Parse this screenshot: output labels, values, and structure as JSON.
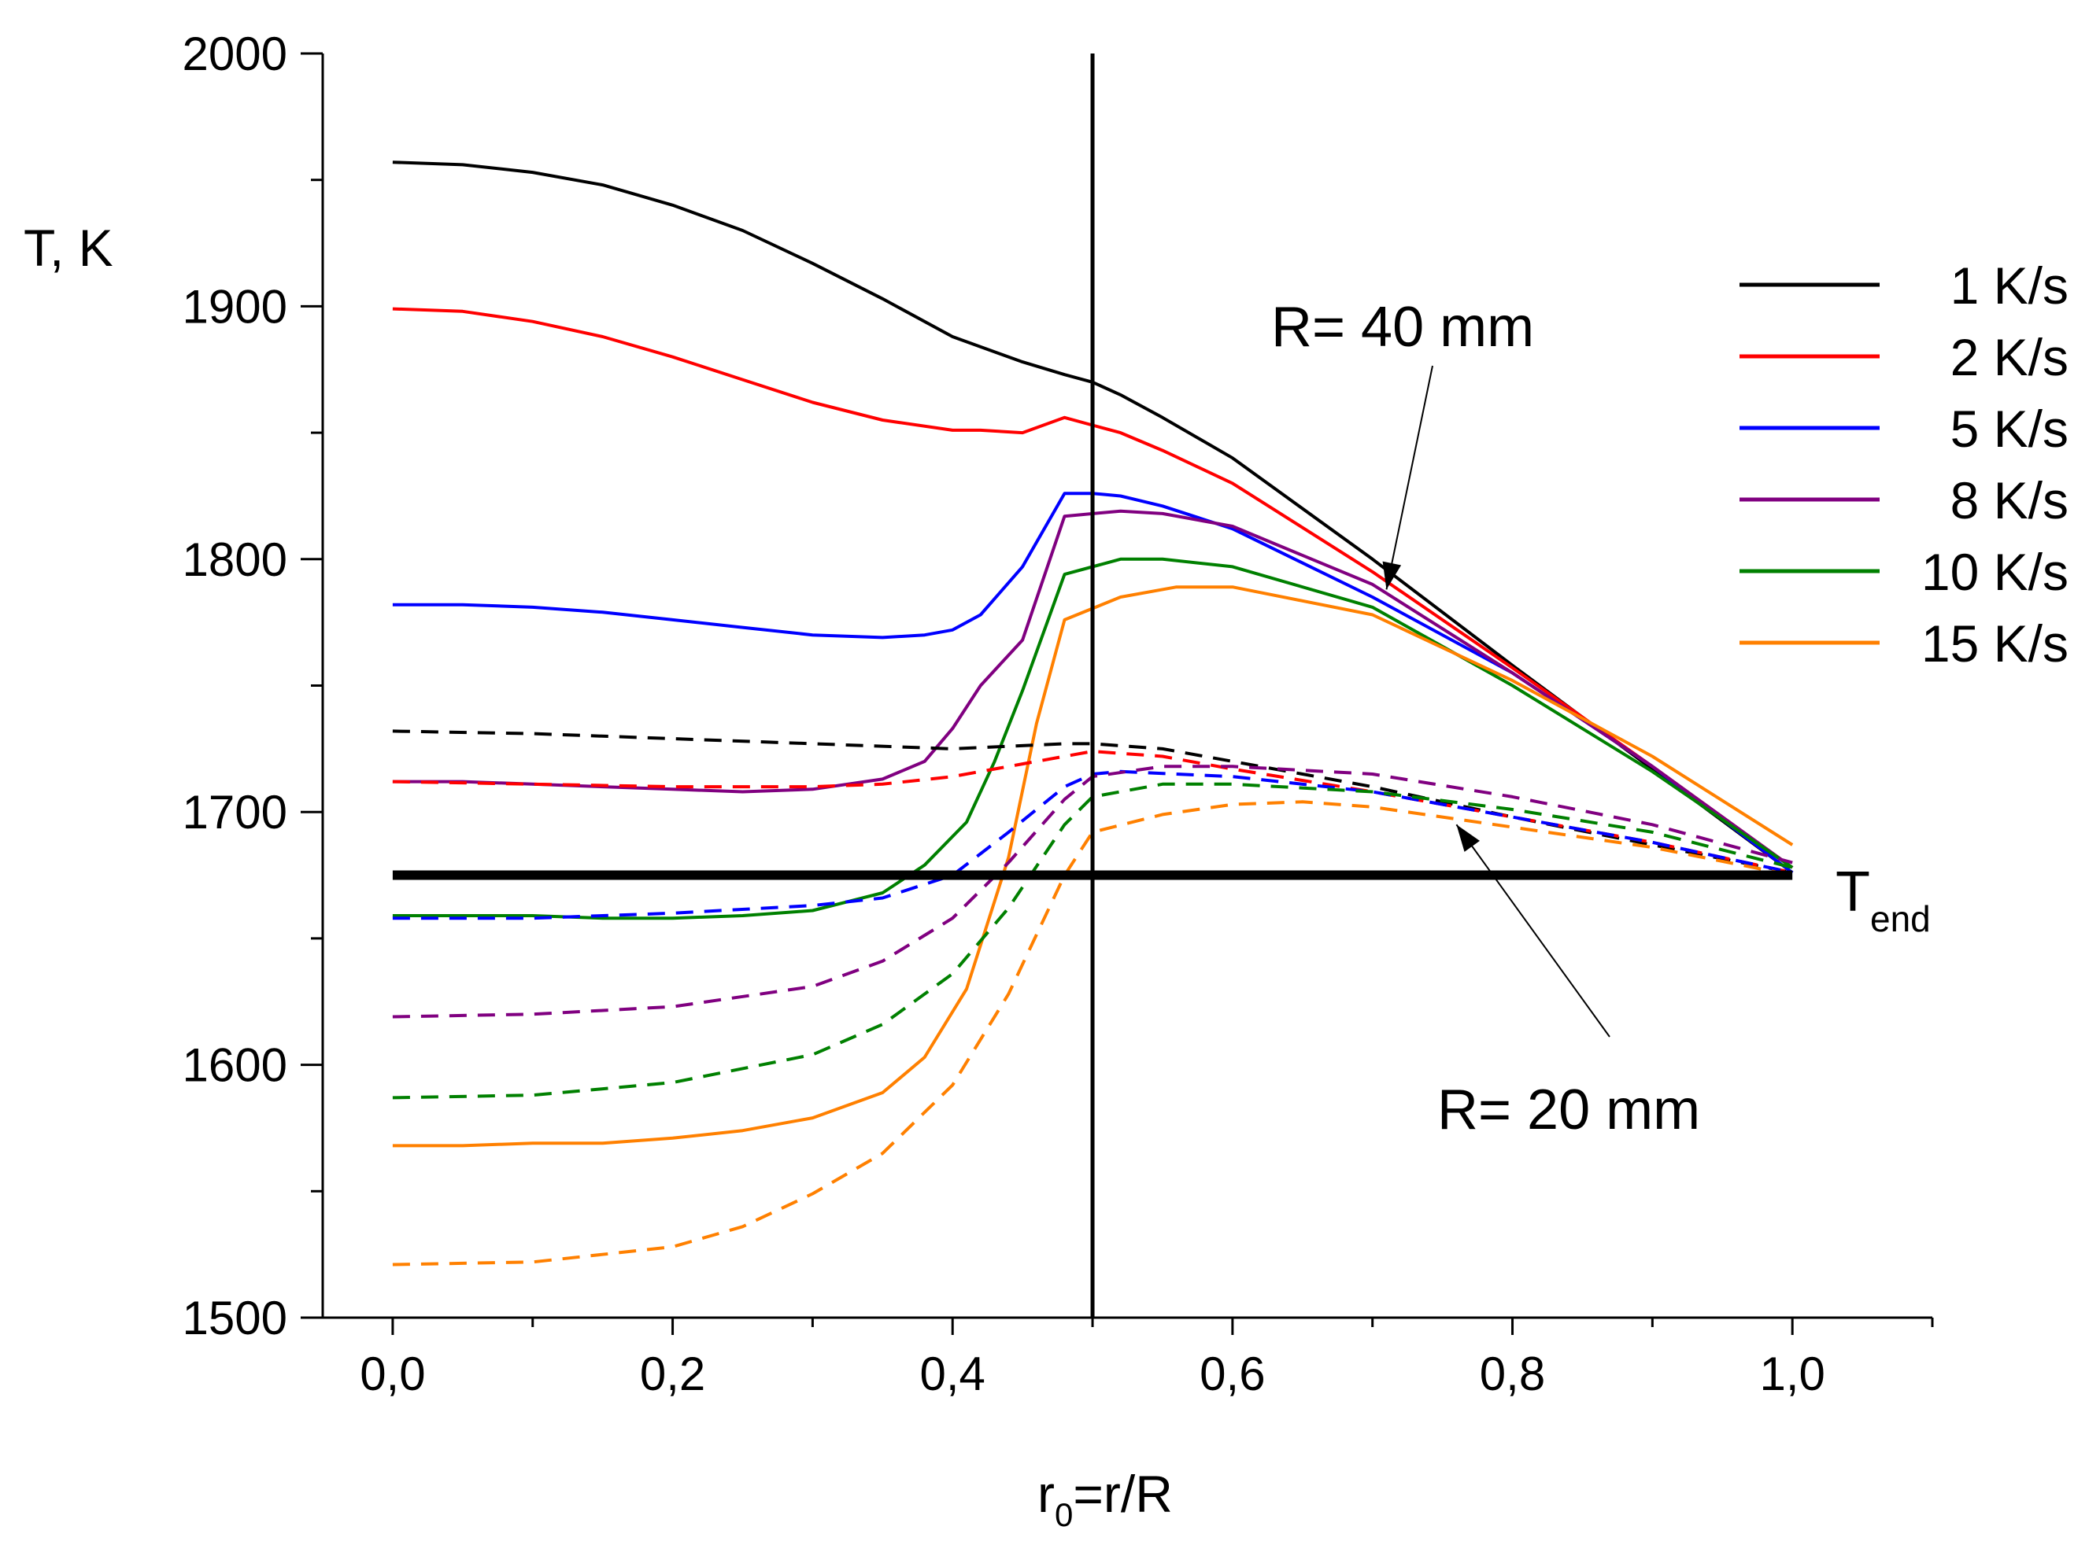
{
  "chart_data": {
    "type": "line",
    "ylabel": "T, K",
    "xlabel_main": "r",
    "xlabel_sub": "0",
    "xlabel_rest": "=r/R",
    "xlim": [
      -0.05,
      1.1
    ],
    "ylim": [
      1500,
      2000
    ],
    "x_ticks": [
      0.0,
      0.2,
      0.4,
      0.6,
      0.8,
      1.0
    ],
    "x_tick_labels": [
      "0,0",
      "0,2",
      "0,4",
      "0,6",
      "0,8",
      "1,0"
    ],
    "y_ticks": [
      1500,
      1600,
      1700,
      1800,
      1900,
      2000
    ],
    "y_tick_labels": [
      "1500",
      "1600",
      "1700",
      "1800",
      "1900",
      "2000"
    ],
    "vertical_line_x": 0.5,
    "t_end": {
      "value": 1675,
      "label_main": "T",
      "label_sub": "end"
    },
    "annotations": [
      {
        "text": "R= 40 mm",
        "arrow_to": [
          0.71,
          1788
        ]
      },
      {
        "text": "R= 20 mm",
        "arrow_to": [
          0.76,
          1695
        ]
      }
    ],
    "legend_position": "top-right",
    "series": [
      {
        "name": "1 K/s",
        "color": "#000000",
        "style": "solid",
        "group": "R=40",
        "x": [
          0,
          0.05,
          0.1,
          0.15,
          0.2,
          0.25,
          0.3,
          0.35,
          0.4,
          0.45,
          0.48,
          0.5,
          0.52,
          0.55,
          0.6,
          0.7,
          0.8,
          0.9,
          1.0
        ],
        "y": [
          1957,
          1956,
          1953,
          1948,
          1940,
          1930,
          1917,
          1903,
          1888,
          1878,
          1873,
          1870,
          1865,
          1856,
          1840,
          1800,
          1758,
          1717,
          1676
        ]
      },
      {
        "name": "2 K/s",
        "color": "#ff0000",
        "style": "solid",
        "group": "R=40",
        "x": [
          0,
          0.05,
          0.1,
          0.15,
          0.2,
          0.25,
          0.3,
          0.35,
          0.4,
          0.42,
          0.45,
          0.48,
          0.5,
          0.52,
          0.55,
          0.6,
          0.7,
          0.8,
          0.9,
          1.0
        ],
        "y": [
          1899,
          1898,
          1894,
          1888,
          1880,
          1871,
          1862,
          1855,
          1851,
          1851,
          1850,
          1856,
          1853,
          1850,
          1843,
          1830,
          1795,
          1757,
          1718,
          1678
        ]
      },
      {
        "name": "5 K/s",
        "color": "#0000ff",
        "style": "solid",
        "group": "R=40",
        "x": [
          0,
          0.05,
          0.1,
          0.15,
          0.2,
          0.25,
          0.3,
          0.35,
          0.38,
          0.4,
          0.42,
          0.45,
          0.48,
          0.5,
          0.52,
          0.55,
          0.6,
          0.7,
          0.8,
          0.9,
          1.0
        ],
        "y": [
          1782,
          1782,
          1781,
          1779,
          1776,
          1773,
          1770,
          1769,
          1770,
          1772,
          1778,
          1797,
          1826,
          1826,
          1825,
          1821,
          1812,
          1785,
          1755,
          1718,
          1676
        ]
      },
      {
        "name": "8 K/s",
        "color": "#800080",
        "style": "solid",
        "group": "R=40",
        "x": [
          0,
          0.05,
          0.1,
          0.15,
          0.2,
          0.25,
          0.3,
          0.35,
          0.38,
          0.4,
          0.42,
          0.45,
          0.48,
          0.52,
          0.55,
          0.6,
          0.7,
          0.8,
          0.9,
          1.0
        ],
        "y": [
          1712,
          1712,
          1711,
          1710,
          1709,
          1708,
          1709,
          1713,
          1720,
          1733,
          1750,
          1768,
          1817,
          1819,
          1818,
          1813,
          1790,
          1755,
          1718,
          1678
        ]
      },
      {
        "name": "10 K/s",
        "color": "#008000",
        "style": "solid",
        "group": "R=40",
        "x": [
          0,
          0.05,
          0.1,
          0.15,
          0.2,
          0.25,
          0.3,
          0.35,
          0.38,
          0.41,
          0.43,
          0.45,
          0.48,
          0.52,
          0.55,
          0.6,
          0.7,
          0.8,
          0.9,
          1.0
        ],
        "y": [
          1659,
          1659,
          1659,
          1658,
          1658,
          1659,
          1661,
          1668,
          1679,
          1696,
          1720,
          1748,
          1794,
          1800,
          1800,
          1797,
          1781,
          1750,
          1716,
          1678
        ]
      },
      {
        "name": "15 K/s",
        "color": "#ff8000",
        "style": "solid",
        "group": "R=40",
        "x": [
          0,
          0.05,
          0.1,
          0.15,
          0.2,
          0.25,
          0.3,
          0.35,
          0.38,
          0.41,
          0.44,
          0.46,
          0.48,
          0.52,
          0.56,
          0.6,
          0.7,
          0.8,
          0.9,
          1.0
        ],
        "y": [
          1568,
          1568,
          1569,
          1569,
          1571,
          1574,
          1579,
          1589,
          1603,
          1630,
          1682,
          1735,
          1776,
          1785,
          1789,
          1789,
          1778,
          1752,
          1722,
          1687
        ]
      },
      {
        "name": "1 K/s",
        "color": "#000000",
        "style": "dashed",
        "group": "R=20",
        "x": [
          0,
          0.1,
          0.2,
          0.3,
          0.4,
          0.48,
          0.5,
          0.55,
          0.6,
          0.7,
          0.8,
          0.9,
          1.0
        ],
        "y": [
          1732,
          1731,
          1729,
          1727,
          1725,
          1727,
          1727,
          1725,
          1720,
          1710,
          1698,
          1687,
          1676
        ]
      },
      {
        "name": "2 K/s",
        "color": "#ff0000",
        "style": "dashed",
        "group": "R=20",
        "x": [
          0,
          0.1,
          0.2,
          0.3,
          0.35,
          0.4,
          0.45,
          0.5,
          0.55,
          0.6,
          0.7,
          0.8,
          0.9,
          1.0
        ],
        "y": [
          1712,
          1711,
          1710,
          1710,
          1711,
          1714,
          1719,
          1724,
          1722,
          1717,
          1708,
          1698,
          1688,
          1676
        ]
      },
      {
        "name": "5 K/s",
        "color": "#0000ff",
        "style": "dashed",
        "group": "R=20",
        "x": [
          0,
          0.1,
          0.2,
          0.3,
          0.35,
          0.4,
          0.44,
          0.48,
          0.5,
          0.52,
          0.6,
          0.7,
          0.8,
          0.9,
          1.0
        ],
        "y": [
          1658,
          1658,
          1660,
          1663,
          1666,
          1675,
          1692,
          1710,
          1715,
          1716,
          1714,
          1708,
          1698,
          1688,
          1676
        ]
      },
      {
        "name": "8 K/s",
        "color": "#800080",
        "style": "dashed",
        "group": "R=20",
        "x": [
          0,
          0.1,
          0.2,
          0.3,
          0.35,
          0.4,
          0.44,
          0.48,
          0.5,
          0.55,
          0.6,
          0.7,
          0.8,
          0.9,
          1.0
        ],
        "y": [
          1619,
          1620,
          1623,
          1631,
          1641,
          1658,
          1680,
          1705,
          1714,
          1718,
          1718,
          1715,
          1706,
          1695,
          1680
        ]
      },
      {
        "name": "10 K/s",
        "color": "#008000",
        "style": "dashed",
        "group": "R=20",
        "x": [
          0,
          0.1,
          0.2,
          0.3,
          0.35,
          0.4,
          0.44,
          0.48,
          0.5,
          0.55,
          0.6,
          0.7,
          0.8,
          0.9,
          1.0
        ],
        "y": [
          1587,
          1588,
          1593,
          1604,
          1616,
          1636,
          1662,
          1695,
          1706,
          1711,
          1711,
          1708,
          1701,
          1692,
          1678
        ]
      },
      {
        "name": "15 K/s",
        "color": "#ff8000",
        "style": "dashed",
        "group": "R=20",
        "x": [
          0,
          0.1,
          0.2,
          0.25,
          0.3,
          0.35,
          0.4,
          0.44,
          0.48,
          0.5,
          0.55,
          0.6,
          0.65,
          0.7,
          0.8,
          0.9,
          1.0
        ],
        "y": [
          1521,
          1522,
          1528,
          1536,
          1549,
          1565,
          1592,
          1628,
          1675,
          1692,
          1699,
          1703,
          1704,
          1702,
          1694,
          1686,
          1675
        ]
      }
    ]
  }
}
